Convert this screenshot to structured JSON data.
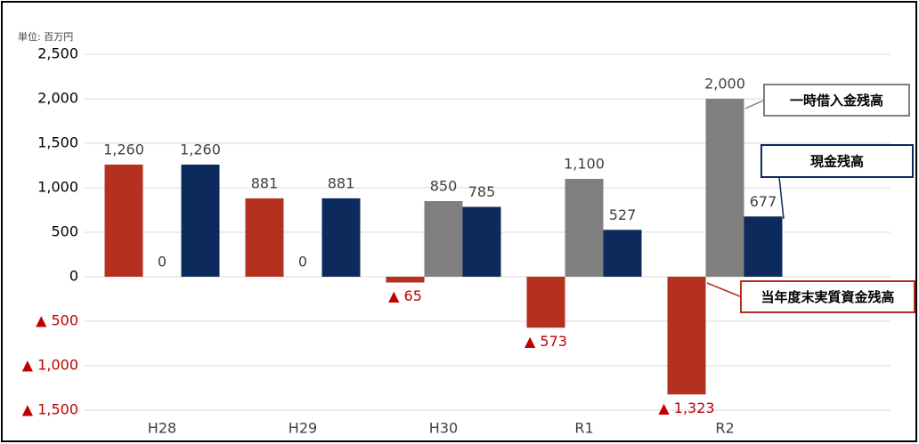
{
  "chart_data": {
    "type": "bar",
    "unit_label": "単位: 百万円",
    "categories": [
      "H28",
      "H29",
      "H30",
      "R1",
      "R2"
    ],
    "series": [
      {
        "name": "当年度末実質資金残高",
        "color": "#b5311f",
        "values": [
          1260,
          881,
          -65,
          -573,
          -1323
        ],
        "value_labels": [
          "1,260",
          "881",
          "▲ 65",
          "▲ 573",
          "▲ 1,323"
        ]
      },
      {
        "name": "一時借入金残高",
        "color": "#7f7f7f",
        "values": [
          0,
          0,
          850,
          1100,
          2000
        ],
        "value_labels": [
          "0",
          "0",
          "850",
          "1,100",
          "2,000"
        ]
      },
      {
        "name": "現金残高",
        "color": "#0d2a5c",
        "values": [
          1260,
          881,
          785,
          527,
          677
        ],
        "value_labels": [
          "1,260",
          "881",
          "785",
          "527",
          "677"
        ]
      }
    ],
    "ylim": [
      -1500,
      2500
    ],
    "yticks": [
      {
        "value": 2500,
        "label": "2,500"
      },
      {
        "value": 2000,
        "label": "2,000"
      },
      {
        "value": 1500,
        "label": "1,500"
      },
      {
        "value": 1000,
        "label": "1,000"
      },
      500,
      0,
      {
        "value": -500,
        "label": "▲ 500"
      },
      {
        "value": -1000,
        "label": "▲ 1,000"
      },
      {
        "value": -1500,
        "label": "▲ 1,500"
      }
    ],
    "grid": true
  }
}
